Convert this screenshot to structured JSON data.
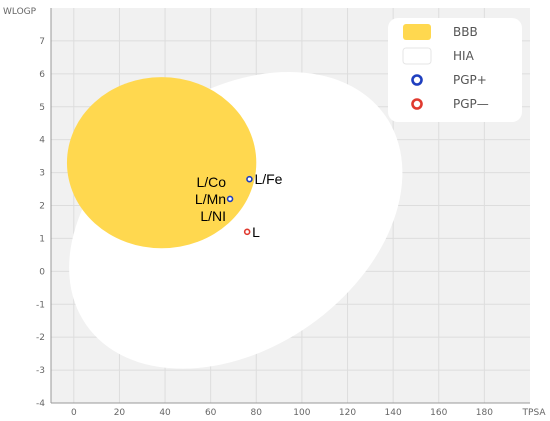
{
  "chart_data": {
    "type": "scatter",
    "xlabel": "TPSA",
    "ylabel": "WLOGP",
    "xlim": [
      -10,
      200
    ],
    "ylim": [
      -4,
      8
    ],
    "grid": true,
    "x_ticks": [
      0,
      20,
      40,
      60,
      80,
      100,
      120,
      140,
      160,
      180
    ],
    "y_ticks": [
      -4,
      -3,
      -2,
      -1,
      0,
      1,
      2,
      3,
      4,
      5,
      6,
      7
    ],
    "legend_position": "top-right",
    "legend": [
      {
        "label": "BBB",
        "kind": "region",
        "color": "#ffd84f"
      },
      {
        "label": "HIA",
        "kind": "region",
        "color": "#ffffff"
      },
      {
        "label": "PGP+",
        "kind": "point",
        "color": "#1f3fbf"
      },
      {
        "label": "PGP—",
        "kind": "point",
        "color": "#e03a2f"
      }
    ],
    "regions": [
      {
        "name": "HIA",
        "shape": "ellipse",
        "cx": 71,
        "cy": 1.55,
        "rx": 80,
        "ry": 3.9,
        "rotation_deg": -35,
        "color": "#ffffff"
      },
      {
        "name": "BBB",
        "shape": "ellipse",
        "cx": 38.5,
        "cy": 3.3,
        "rx": 41.5,
        "ry": 2.6,
        "rotation_deg": 0,
        "color": "#ffd84f"
      }
    ],
    "points": [
      {
        "label": "L/Fe",
        "x": 77,
        "y": 2.8,
        "category": "PGP+",
        "label_side": "right"
      },
      {
        "label": "L/Co\nL/Mn\nL/NI",
        "x": 68.5,
        "y": 2.2,
        "category": "PGP+",
        "label_side": "left"
      },
      {
        "label": "L",
        "x": 76,
        "y": 1.2,
        "category": "PGP—",
        "label_side": "right"
      }
    ]
  }
}
